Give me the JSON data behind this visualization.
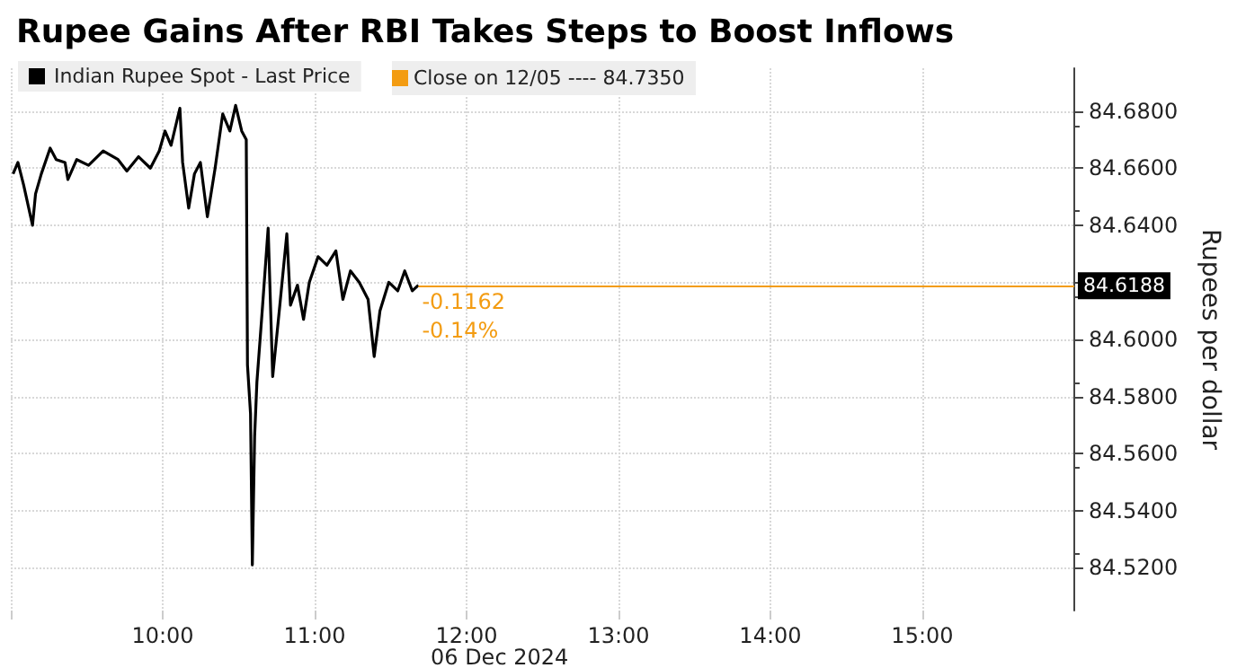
{
  "chart_data": {
    "type": "line",
    "title": "Rupee Gains After RBI Takes Steps to Boost Inflows",
    "ylabel": "Rupees per dollar",
    "x": [
      9.015,
      9.047,
      9.085,
      9.143,
      9.163,
      9.201,
      9.259,
      9.299,
      9.357,
      9.376,
      9.434,
      9.512,
      9.608,
      9.706,
      9.764,
      9.841,
      9.919,
      9.977,
      10.015,
      10.055,
      10.113,
      10.131,
      10.171,
      10.209,
      10.248,
      10.294,
      10.345,
      10.395,
      10.442,
      10.48,
      10.52,
      10.55,
      10.558,
      10.578,
      10.59,
      10.605,
      10.62,
      10.655,
      10.694,
      10.724,
      10.771,
      10.817,
      10.841,
      10.887,
      10.927,
      10.965,
      11.023,
      11.081,
      11.14,
      11.186,
      11.236,
      11.294,
      11.352,
      11.392,
      11.43,
      11.488,
      11.547,
      11.593,
      11.643,
      11.683
    ],
    "series": [
      {
        "name": "Indian Rupee Spot - Last Price",
        "color": "#000000",
        "values": [
          84.658,
          84.662,
          84.654,
          84.64,
          84.651,
          84.658,
          84.667,
          84.663,
          84.662,
          84.656,
          84.663,
          84.661,
          84.666,
          84.663,
          84.659,
          84.664,
          84.66,
          84.666,
          84.673,
          84.668,
          84.681,
          84.662,
          84.646,
          84.658,
          84.662,
          84.643,
          84.66,
          84.679,
          84.673,
          84.682,
          84.673,
          84.67,
          84.591,
          84.574,
          84.521,
          84.566,
          84.585,
          84.61,
          84.639,
          84.587,
          84.612,
          84.637,
          84.612,
          84.619,
          84.607,
          84.62,
          84.629,
          84.626,
          84.631,
          84.614,
          84.624,
          84.62,
          84.614,
          84.594,
          84.61,
          84.62,
          84.617,
          84.624,
          84.617,
          84.619
        ]
      }
    ],
    "xlim": [
      9,
      16
    ],
    "xticks": [
      {
        "value": 9,
        "label": null
      },
      {
        "value": 10,
        "label": "10:00"
      },
      {
        "value": 11,
        "label": "11:00"
      },
      {
        "value": 12,
        "label": "12:00"
      },
      {
        "value": 13,
        "label": "13:00"
      },
      {
        "value": 14,
        "label": "14:00"
      },
      {
        "value": 15,
        "label": "15:00"
      }
    ],
    "ylim": [
      84.505,
      84.695
    ],
    "yticks": [
      {
        "value": 84.52,
        "label": "84.5200"
      },
      {
        "value": 84.54,
        "label": "84.5400"
      },
      {
        "value": 84.56,
        "label": "84.5600"
      },
      {
        "value": 84.58,
        "label": "84.5800"
      },
      {
        "value": 84.6,
        "label": "84.6000"
      },
      {
        "value": 84.62,
        "label": null
      },
      {
        "value": 84.64,
        "label": "84.6400"
      },
      {
        "value": 84.66,
        "label": "84.6600"
      },
      {
        "value": 84.68,
        "label": "84.6800"
      }
    ],
    "ref_lines": [
      {
        "axis": "y",
        "value": 84.6188,
        "label": "84.6188",
        "color": "#f39c12"
      }
    ],
    "annotations": [
      {
        "text": "-0.1162",
        "x": 11.683,
        "y": 84.6188
      },
      {
        "text": "-0.14%",
        "x": 11.683,
        "y": 84.6188
      },
      "06 Dec 2024",
      "Close on 12/05 ---- 84.7350"
    ],
    "grid": true,
    "legend": "top left",
    "marker": "none",
    "line_style": "solid"
  }
}
